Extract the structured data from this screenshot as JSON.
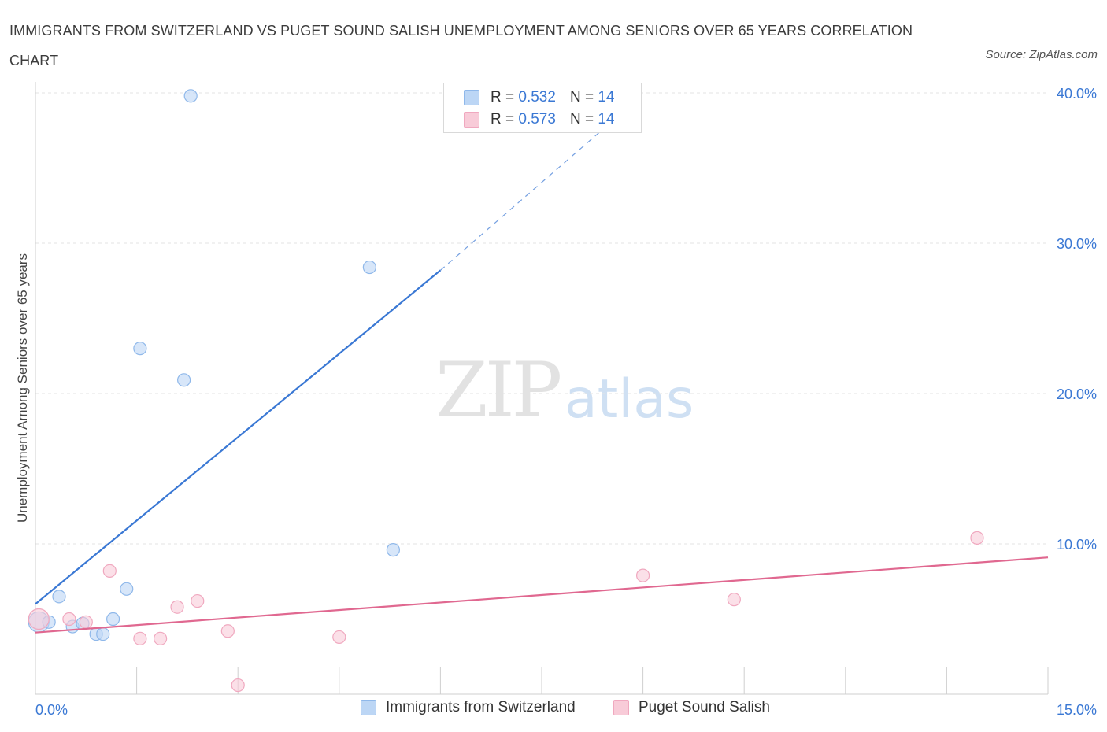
{
  "chart_data": {
    "type": "scatter",
    "title": "IMMIGRANTS FROM SWITZERLAND VS PUGET SOUND SALISH UNEMPLOYMENT AMONG SENIORS OVER 65 YEARS CORRELATION CHART",
    "source": "Source: ZipAtlas.com",
    "ylabel": "Unemployment Among Seniors over 65 years",
    "xlim": [
      0,
      15
    ],
    "ylim": [
      0,
      40
    ],
    "x_tick_labels": [
      "0.0%",
      "15.0%"
    ],
    "y_ticks": [
      10,
      20,
      30,
      40
    ],
    "y_tick_labels": [
      "10.0%",
      "20.0%",
      "30.0%",
      "40.0%"
    ],
    "watermark": {
      "zip": "ZIP",
      "atlas": "atlas"
    },
    "series": [
      {
        "name": "Immigrants from Switzerland",
        "color": "#8fb8ea",
        "fill": "#bcd6f5",
        "line_color": "#3a78d4",
        "R": "0.532",
        "N": "14",
        "points": [
          [
            0.05,
            4.8
          ],
          [
            0.2,
            4.8
          ],
          [
            0.35,
            6.5
          ],
          [
            0.55,
            4.5
          ],
          [
            0.7,
            4.7
          ],
          [
            0.9,
            4.0
          ],
          [
            1.0,
            4.0
          ],
          [
            1.15,
            5.0
          ],
          [
            1.35,
            7.0
          ],
          [
            1.55,
            23.0
          ],
          [
            2.2,
            20.9
          ],
          [
            2.3,
            39.8
          ],
          [
            4.95,
            28.4
          ],
          [
            5.3,
            9.6
          ]
        ],
        "trend": {
          "x0": 0,
          "y0": 6.0,
          "x1": 6.0,
          "y1": 28.2,
          "dash_x1": 8.9,
          "dash_y1": 39.5
        }
      },
      {
        "name": "Puget Sound Salish",
        "color": "#f0a8bf",
        "fill": "#f8cbd8",
        "line_color": "#e06890",
        "R": "0.573",
        "N": "14",
        "points": [
          [
            0.05,
            5.0
          ],
          [
            0.5,
            5.0
          ],
          [
            0.75,
            4.8
          ],
          [
            1.1,
            8.2
          ],
          [
            1.55,
            3.7
          ],
          [
            1.85,
            3.7
          ],
          [
            2.1,
            5.8
          ],
          [
            2.4,
            6.2
          ],
          [
            2.85,
            4.2
          ],
          [
            3.0,
            0.6
          ],
          [
            4.5,
            3.8
          ],
          [
            9.0,
            7.9
          ],
          [
            10.35,
            6.3
          ],
          [
            13.95,
            10.4
          ]
        ],
        "trend": {
          "x0": 0,
          "y0": 4.1,
          "x1": 15,
          "y1": 9.1
        }
      }
    ]
  },
  "legend_top": {
    "rows": [
      {
        "r_label": "R = ",
        "r_value": "0.532",
        "n_label": "N = ",
        "n_value": "14"
      },
      {
        "r_label": "R = ",
        "r_value": "0.573",
        "n_label": "N = ",
        "n_value": "14"
      }
    ]
  },
  "legend_bottom": [
    "Immigrants from Switzerland",
    "Puget Sound Salish"
  ]
}
